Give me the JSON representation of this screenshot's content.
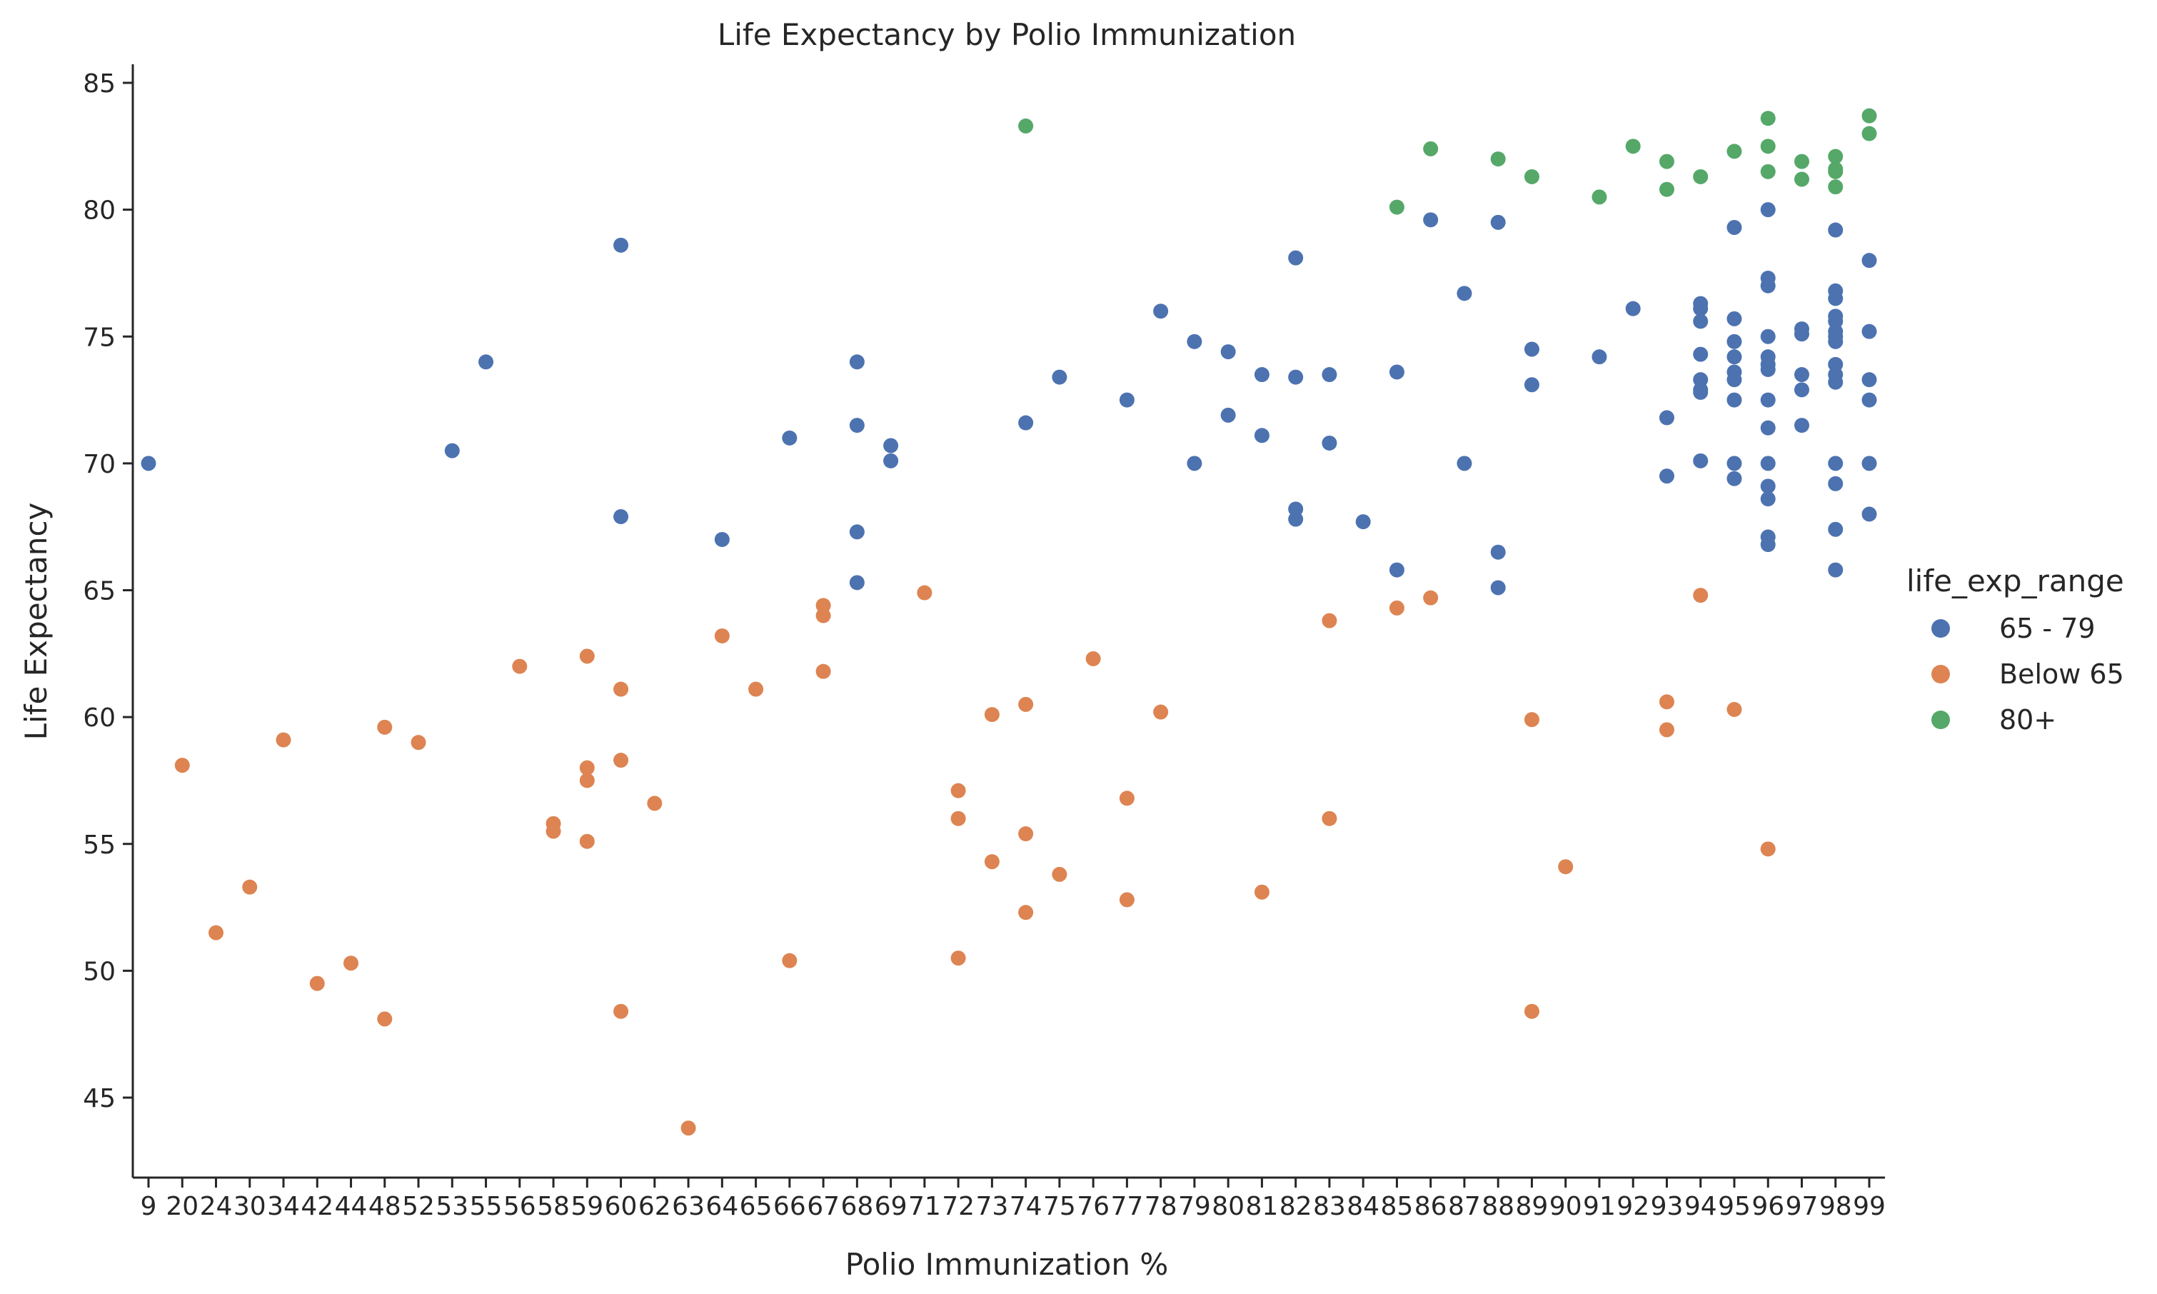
{
  "chart_data": {
    "type": "scatter",
    "title": "Life Expectancy by Polio Immunization",
    "xlabel": "Polio Immunization %",
    "ylabel": "Life Expectancy",
    "x_categories": [
      "9",
      "20",
      "24",
      "30",
      "34",
      "42",
      "44",
      "48",
      "52",
      "53",
      "55",
      "56",
      "58",
      "59",
      "60",
      "62",
      "63",
      "64",
      "65",
      "66",
      "67",
      "68",
      "69",
      "71",
      "72",
      "73",
      "74",
      "75",
      "76",
      "77",
      "78",
      "79",
      "80",
      "81",
      "82",
      "83",
      "84",
      "85",
      "86",
      "87",
      "88",
      "89",
      "90",
      "91",
      "92",
      "93",
      "94",
      "95",
      "96",
      "97",
      "98",
      "99"
    ],
    "ylim": [
      42,
      86
    ],
    "yticks": [
      45,
      50,
      55,
      60,
      65,
      70,
      75,
      80,
      85
    ],
    "grid": false,
    "legend": {
      "title": "life_exp_range",
      "placement": "right",
      "entries": [
        {
          "name": "65 - 79",
          "color": "#4c72b0"
        },
        {
          "name": "Below 65",
          "color": "#dd8452"
        },
        {
          "name": "80+",
          "color": "#55a868"
        }
      ]
    },
    "series": [
      {
        "name": "65 - 79",
        "color": "#4c72b0",
        "points": [
          [
            "9",
            70.0
          ],
          [
            "53",
            70.5
          ],
          [
            "55",
            74.0
          ],
          [
            "60",
            78.6
          ],
          [
            "60",
            67.9
          ],
          [
            "64",
            67.0
          ],
          [
            "66",
            71.0
          ],
          [
            "68",
            74.0
          ],
          [
            "68",
            71.5
          ],
          [
            "68",
            67.3
          ],
          [
            "68",
            65.3
          ],
          [
            "69",
            70.7
          ],
          [
            "69",
            70.1
          ],
          [
            "74",
            71.6
          ],
          [
            "75",
            73.4
          ],
          [
            "77",
            72.5
          ],
          [
            "78",
            76.0
          ],
          [
            "79",
            74.8
          ],
          [
            "79",
            70.0
          ],
          [
            "80",
            74.4
          ],
          [
            "80",
            71.9
          ],
          [
            "81",
            73.5
          ],
          [
            "81",
            71.1
          ],
          [
            "82",
            78.1
          ],
          [
            "82",
            73.4
          ],
          [
            "82",
            68.2
          ],
          [
            "82",
            67.8
          ],
          [
            "83",
            73.5
          ],
          [
            "83",
            70.8
          ],
          [
            "84",
            67.7
          ],
          [
            "85",
            73.6
          ],
          [
            "85",
            65.8
          ],
          [
            "86",
            79.6
          ],
          [
            "87",
            76.7
          ],
          [
            "87",
            70.0
          ],
          [
            "88",
            79.5
          ],
          [
            "88",
            66.5
          ],
          [
            "88",
            65.1
          ],
          [
            "89",
            74.5
          ],
          [
            "89",
            73.1
          ],
          [
            "91",
            74.2
          ],
          [
            "92",
            76.1
          ],
          [
            "93",
            71.8
          ],
          [
            "93",
            69.5
          ],
          [
            "94",
            76.3
          ],
          [
            "94",
            76.1
          ],
          [
            "94",
            75.6
          ],
          [
            "94",
            74.3
          ],
          [
            "94",
            73.3
          ],
          [
            "94",
            72.9
          ],
          [
            "94",
            72.8
          ],
          [
            "94",
            70.1
          ],
          [
            "95",
            79.3
          ],
          [
            "95",
            75.7
          ],
          [
            "95",
            74.8
          ],
          [
            "95",
            74.2
          ],
          [
            "95",
            73.6
          ],
          [
            "95",
            73.3
          ],
          [
            "95",
            72.5
          ],
          [
            "95",
            70.0
          ],
          [
            "95",
            69.4
          ],
          [
            "96",
            80.0
          ],
          [
            "96",
            77.3
          ],
          [
            "96",
            77.0
          ],
          [
            "96",
            75.0
          ],
          [
            "96",
            74.2
          ],
          [
            "96",
            73.9
          ],
          [
            "96",
            73.7
          ],
          [
            "96",
            72.5
          ],
          [
            "96",
            71.4
          ],
          [
            "96",
            70.0
          ],
          [
            "96",
            69.1
          ],
          [
            "96",
            68.6
          ],
          [
            "96",
            67.1
          ],
          [
            "96",
            66.8
          ],
          [
            "97",
            75.3
          ],
          [
            "97",
            75.1
          ],
          [
            "97",
            73.5
          ],
          [
            "97",
            72.9
          ],
          [
            "97",
            71.5
          ],
          [
            "98",
            79.2
          ],
          [
            "98",
            76.8
          ],
          [
            "98",
            76.5
          ],
          [
            "98",
            75.8
          ],
          [
            "98",
            75.6
          ],
          [
            "98",
            75.2
          ],
          [
            "98",
            75.0
          ],
          [
            "98",
            74.8
          ],
          [
            "98",
            73.9
          ],
          [
            "98",
            73.5
          ],
          [
            "98",
            73.2
          ],
          [
            "98",
            70.0
          ],
          [
            "98",
            69.2
          ],
          [
            "98",
            67.4
          ],
          [
            "98",
            65.8
          ],
          [
            "99",
            78.0
          ],
          [
            "99",
            75.2
          ],
          [
            "99",
            73.3
          ],
          [
            "99",
            72.5
          ],
          [
            "99",
            70.0
          ],
          [
            "99",
            68.0
          ]
        ]
      },
      {
        "name": "Below 65",
        "color": "#dd8452",
        "points": [
          [
            "20",
            58.1
          ],
          [
            "24",
            51.5
          ],
          [
            "30",
            53.3
          ],
          [
            "34",
            59.1
          ],
          [
            "42",
            49.5
          ],
          [
            "44",
            50.3
          ],
          [
            "48",
            59.6
          ],
          [
            "48",
            48.1
          ],
          [
            "52",
            59.0
          ],
          [
            "56",
            62.0
          ],
          [
            "58",
            55.8
          ],
          [
            "58",
            55.5
          ],
          [
            "59",
            62.4
          ],
          [
            "59",
            58.0
          ],
          [
            "59",
            57.5
          ],
          [
            "59",
            55.1
          ],
          [
            "60",
            61.1
          ],
          [
            "60",
            58.3
          ],
          [
            "60",
            48.4
          ],
          [
            "62",
            56.6
          ],
          [
            "63",
            43.8
          ],
          [
            "64",
            63.2
          ],
          [
            "65",
            61.1
          ],
          [
            "66",
            50.4
          ],
          [
            "67",
            64.4
          ],
          [
            "67",
            64.0
          ],
          [
            "67",
            61.8
          ],
          [
            "71",
            64.9
          ],
          [
            "72",
            57.1
          ],
          [
            "72",
            56.0
          ],
          [
            "72",
            50.5
          ],
          [
            "73",
            60.1
          ],
          [
            "73",
            54.3
          ],
          [
            "74",
            60.5
          ],
          [
            "74",
            55.4
          ],
          [
            "74",
            52.3
          ],
          [
            "75",
            53.8
          ],
          [
            "76",
            62.3
          ],
          [
            "77",
            56.8
          ],
          [
            "77",
            52.8
          ],
          [
            "78",
            60.2
          ],
          [
            "81",
            53.1
          ],
          [
            "83",
            63.8
          ],
          [
            "83",
            56.0
          ],
          [
            "85",
            64.3
          ],
          [
            "86",
            64.7
          ],
          [
            "89",
            59.9
          ],
          [
            "89",
            48.4
          ],
          [
            "90",
            54.1
          ],
          [
            "93",
            60.6
          ],
          [
            "93",
            59.5
          ],
          [
            "94",
            64.8
          ],
          [
            "95",
            60.3
          ],
          [
            "96",
            54.8
          ]
        ]
      },
      {
        "name": "80+",
        "color": "#55a868",
        "points": [
          [
            "74",
            83.3
          ],
          [
            "85",
            80.1
          ],
          [
            "86",
            82.4
          ],
          [
            "88",
            82.0
          ],
          [
            "89",
            81.3
          ],
          [
            "91",
            80.5
          ],
          [
            "92",
            82.5
          ],
          [
            "93",
            81.9
          ],
          [
            "93",
            80.8
          ],
          [
            "94",
            81.3
          ],
          [
            "95",
            82.3
          ],
          [
            "96",
            83.6
          ],
          [
            "96",
            82.5
          ],
          [
            "96",
            81.5
          ],
          [
            "97",
            81.9
          ],
          [
            "97",
            81.2
          ],
          [
            "98",
            82.1
          ],
          [
            "98",
            81.6
          ],
          [
            "98",
            81.5
          ],
          [
            "98",
            80.9
          ],
          [
            "99",
            83.7
          ],
          [
            "99",
            83.0
          ]
        ]
      }
    ]
  }
}
